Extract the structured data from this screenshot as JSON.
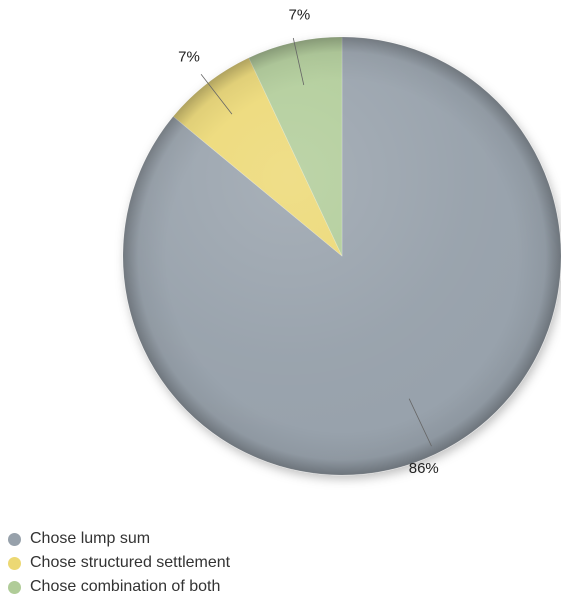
{
  "chart_data": {
    "type": "pie",
    "slices": [
      {
        "name": "Chose lump sum",
        "value": 86,
        "label": "86%",
        "color": "#97a1ab"
      },
      {
        "name": "Chose structured settlement",
        "value": 7,
        "label": "7%",
        "color": "#ecd873"
      },
      {
        "name": "Chose combination of both",
        "value": 7,
        "label": "7%",
        "color": "#b0cc98"
      }
    ],
    "start_angle_deg": 0,
    "direction": "clockwise",
    "legend_position": "bottom-left"
  }
}
